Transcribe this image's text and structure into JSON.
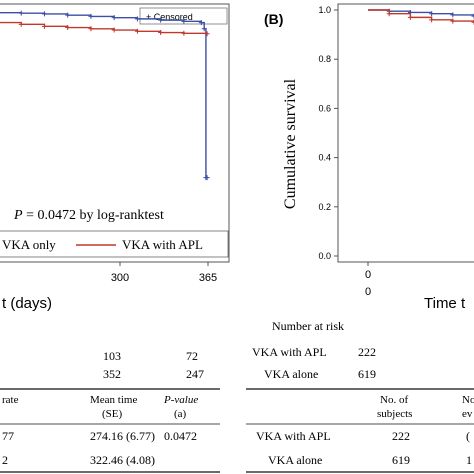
{
  "chart_data": [
    {
      "type": "line",
      "panel": "A",
      "xlabel": "t (days)",
      "x_ticks": [
        300,
        365
      ],
      "ylim": [
        0.0,
        1.0
      ],
      "series": [
        {
          "name": "VKA only",
          "color": "#3b4fa6",
          "x": [
            0,
            40,
            80,
            120,
            160,
            200,
            240,
            280,
            320,
            350,
            355,
            358,
            360
          ],
          "y": [
            0.965,
            0.963,
            0.96,
            0.955,
            0.95,
            0.945,
            0.94,
            0.935,
            0.93,
            0.925,
            0.9,
            0.3,
            0.3
          ]
        },
        {
          "name": "VKA with APL",
          "color": "#c0392b",
          "x": [
            0,
            40,
            80,
            120,
            160,
            200,
            240,
            280,
            320,
            360
          ],
          "y": [
            0.925,
            0.918,
            0.91,
            0.905,
            0.9,
            0.895,
            0.89,
            0.885,
            0.882,
            0.88
          ]
        }
      ],
      "legend_censored": "+ Censored",
      "annotation": "P = 0.0472  by  log-ranktest",
      "annotation_p": "P",
      "annotation_rest": " = 0.0472  by  log-ranktest"
    },
    {
      "type": "line",
      "panel": "B",
      "panel_label": "(B)",
      "ylabel": "Cumulative survival",
      "xlabel": "Time t",
      "y_ticks": [
        "1.0",
        "0.8",
        "0.6",
        "0.4",
        "0.2",
        "0.0"
      ],
      "x_tick": "0",
      "x_tick_below": "0",
      "ylim": [
        0.0,
        1.0
      ],
      "series": [
        {
          "color": "#3b4fa6",
          "x": [
            0,
            20,
            40,
            60,
            80,
            100
          ],
          "y": [
            1.0,
            0.995,
            0.99,
            0.985,
            0.98,
            0.975
          ]
        },
        {
          "color": "#c0392b",
          "x": [
            0,
            20,
            40,
            60,
            80,
            100
          ],
          "y": [
            1.0,
            0.985,
            0.97,
            0.96,
            0.955,
            0.95
          ]
        }
      ]
    }
  ],
  "tableA": {
    "risk_row1": [
      "103",
      "72"
    ],
    "risk_row2": [
      "352",
      "247"
    ],
    "headers": [
      "rate",
      "Mean time",
      "(SE)",
      "P-value",
      "(a)"
    ],
    "rows": [
      [
        "77",
        "274.16 (6.77)",
        "0.0472"
      ],
      [
        "2",
        "322.46 (4.08)",
        ""
      ]
    ]
  },
  "tableB": {
    "risk_title": "Number at risk",
    "risk_rows": [
      {
        "label": "VKA with APL",
        "value": "222"
      },
      {
        "label": "VKA alone",
        "value": "619"
      }
    ],
    "col1a": "No. of",
    "col1b": "subjects",
    "col2a": "No",
    "col2b": "ev",
    "rows": [
      {
        "label": "VKA with APL",
        "subjects": "222",
        "events": "("
      },
      {
        "label": "VKA alone",
        "subjects": "619",
        "events": "1"
      }
    ]
  },
  "colors": {
    "blue": "#3b4fa6",
    "red": "#c0392b"
  }
}
